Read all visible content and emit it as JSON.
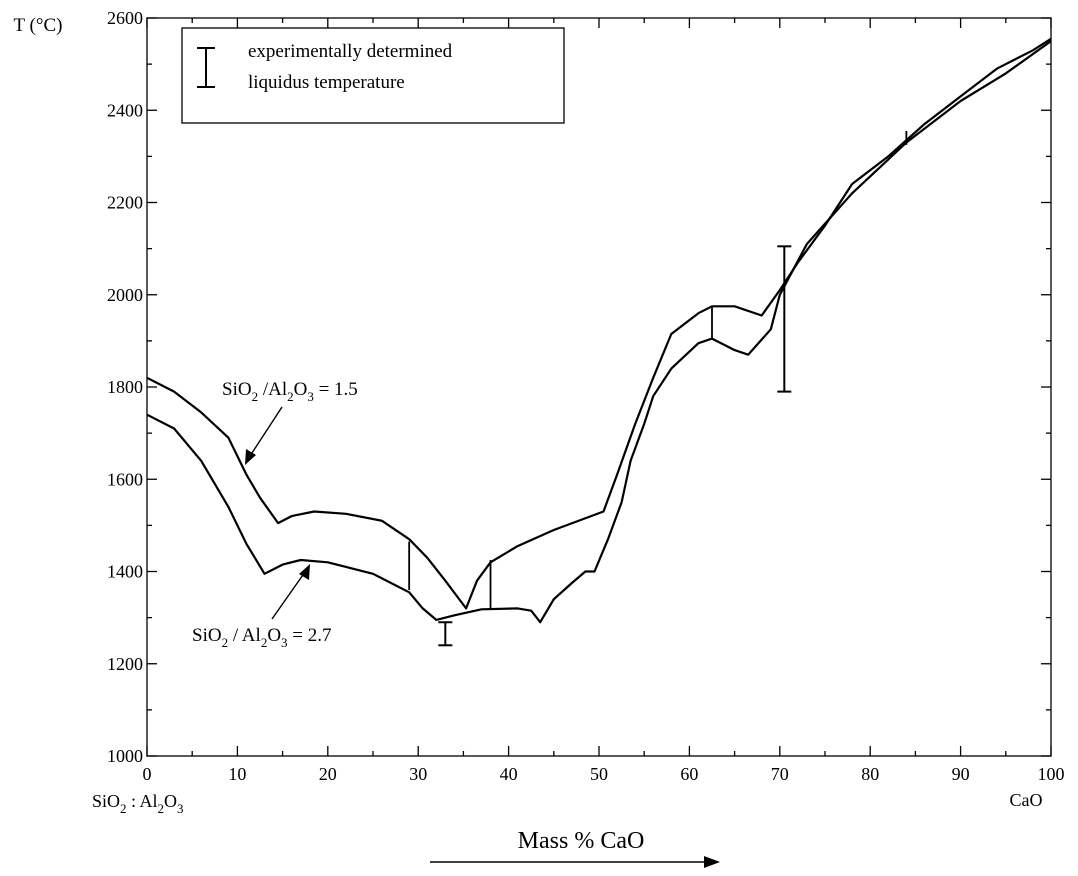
{
  "chart_data": {
    "type": "line",
    "ylabel": "T (°C)",
    "xlabel": "Mass % CaO",
    "xlim": [
      0,
      100
    ],
    "ylim": [
      1000,
      2600
    ],
    "x_ticks": [
      0,
      10,
      20,
      30,
      40,
      50,
      60,
      70,
      80,
      90,
      100
    ],
    "y_ticks": [
      1000,
      1200,
      1400,
      1600,
      1800,
      2000,
      2200,
      2400,
      2600
    ],
    "x_end_left": {
      "pre": "SiO",
      "sub1": "2",
      "mid": " : Al",
      "sub2": "2",
      "post": "O",
      "sub3": "3"
    },
    "x_end_right": "CaO",
    "grid": false,
    "legend": {
      "position": "top-left",
      "line1": "experimentally determined",
      "line2": "liquidus temperature"
    },
    "series": [
      {
        "label": {
          "pre": "SiO",
          "sub1": "2",
          "mid": " /Al",
          "sub2": "2",
          "post": "O",
          "sub3": "3",
          "tail": " = 1.5"
        },
        "points": [
          [
            0,
            1820
          ],
          [
            3,
            1790
          ],
          [
            6,
            1745
          ],
          [
            9,
            1690
          ],
          [
            11,
            1610
          ],
          [
            12.5,
            1560
          ],
          [
            14.5,
            1505
          ],
          [
            16,
            1520
          ],
          [
            18.5,
            1530
          ],
          [
            22,
            1525
          ],
          [
            26,
            1510
          ],
          [
            29,
            1470
          ],
          [
            31,
            1430
          ],
          [
            33,
            1380
          ],
          [
            35.3,
            1320
          ],
          [
            36.5,
            1380
          ],
          [
            38,
            1420
          ],
          [
            41,
            1455
          ],
          [
            45,
            1490
          ],
          [
            50.5,
            1530
          ],
          [
            52,
            1610
          ],
          [
            54,
            1720
          ],
          [
            56,
            1820
          ],
          [
            58,
            1915
          ],
          [
            61,
            1960
          ],
          [
            62.5,
            1975
          ],
          [
            65,
            1975
          ],
          [
            68,
            1955
          ],
          [
            70,
            2010
          ],
          [
            72,
            2070
          ],
          [
            75,
            2150
          ],
          [
            78,
            2240
          ],
          [
            82,
            2300
          ],
          [
            86,
            2370
          ],
          [
            90,
            2430
          ],
          [
            94,
            2490
          ],
          [
            98,
            2530
          ],
          [
            100,
            2555
          ]
        ]
      },
      {
        "label": {
          "pre": "SiO",
          "sub1": "2",
          "mid": " / Al",
          "sub2": "2",
          "post": "O",
          "sub3": "3",
          "tail": " = 2.7"
        },
        "points": [
          [
            0,
            1740
          ],
          [
            3,
            1710
          ],
          [
            6,
            1640
          ],
          [
            9,
            1540
          ],
          [
            11,
            1460
          ],
          [
            13,
            1395
          ],
          [
            15,
            1415
          ],
          [
            17,
            1425
          ],
          [
            20,
            1420
          ],
          [
            25,
            1395
          ],
          [
            29,
            1355
          ],
          [
            30.5,
            1320
          ],
          [
            32,
            1295
          ],
          [
            34,
            1305
          ],
          [
            37,
            1318
          ],
          [
            41,
            1320
          ],
          [
            42.5,
            1315
          ],
          [
            43.5,
            1290
          ],
          [
            45,
            1340
          ],
          [
            47,
            1375
          ],
          [
            48.5,
            1400
          ],
          [
            49.5,
            1400
          ],
          [
            51,
            1470
          ],
          [
            52.5,
            1550
          ],
          [
            53.5,
            1640
          ],
          [
            55,
            1720
          ],
          [
            56,
            1780
          ],
          [
            58,
            1840
          ],
          [
            61,
            1895
          ],
          [
            62.5,
            1905
          ],
          [
            65,
            1880
          ],
          [
            66.5,
            1870
          ],
          [
            69,
            1925
          ],
          [
            70,
            2000
          ],
          [
            73,
            2110
          ],
          [
            78,
            2220
          ],
          [
            84,
            2330
          ],
          [
            90,
            2420
          ],
          [
            95,
            2480
          ],
          [
            100,
            2550
          ]
        ]
      }
    ],
    "tie_lines": [
      {
        "x": 29,
        "y1": 1360,
        "y2": 1465
      },
      {
        "x": 38,
        "y1": 1320,
        "y2": 1425
      },
      {
        "x": 62.5,
        "y1": 1905,
        "y2": 1975
      },
      {
        "x": 84,
        "y1": 2325,
        "y2": 2355
      }
    ],
    "error_bars": [
      {
        "x": 33,
        "low": 1240,
        "high": 1290
      },
      {
        "x": 70.5,
        "low": 1790,
        "high": 2105
      }
    ]
  }
}
